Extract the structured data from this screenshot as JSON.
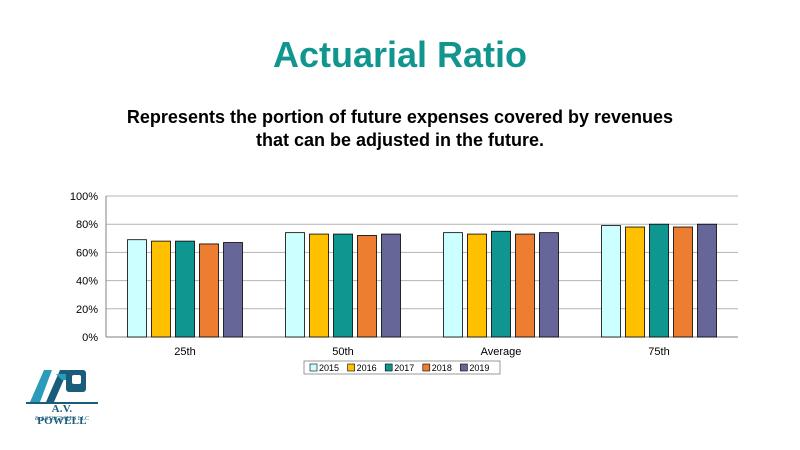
{
  "header": {
    "title": "Actuarial Ratio",
    "subtitle_line1": "Represents the portion of future expenses covered by revenues",
    "subtitle_line2": "that can be adjusted in the future."
  },
  "logo": {
    "line1": "A.V. POWELL",
    "line2": "& ASSOCIATES LLC",
    "color": "#1a5d7a"
  },
  "chart_data": {
    "type": "bar",
    "categories": [
      "25th",
      "50th",
      "Average",
      "75th"
    ],
    "series": [
      {
        "name": "2015",
        "color": "#ccffff",
        "values": [
          69,
          74,
          74,
          79
        ]
      },
      {
        "name": "2016",
        "color": "#ffc000",
        "values": [
          68,
          73,
          73,
          78
        ]
      },
      {
        "name": "2017",
        "color": "#109690",
        "values": [
          68,
          73,
          75,
          80
        ]
      },
      {
        "name": "2018",
        "color": "#ed7d31",
        "values": [
          66,
          72,
          73,
          78
        ]
      },
      {
        "name": "2019",
        "color": "#666699",
        "values": [
          67,
          73,
          74,
          80
        ]
      }
    ],
    "yticks": [
      "0%",
      "20%",
      "40%",
      "60%",
      "80%",
      "100%"
    ],
    "ylim": [
      0,
      100
    ],
    "grid": true,
    "legend": "bottom"
  }
}
